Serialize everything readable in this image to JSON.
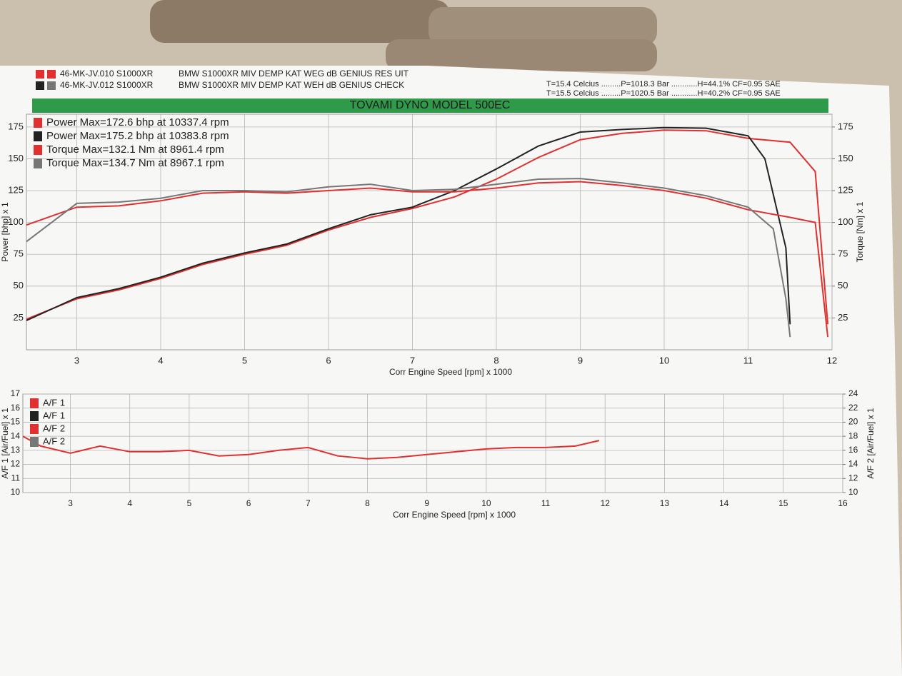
{
  "header": {
    "runs": [
      {
        "id": "46-MK-JV.010 S1000XR",
        "desc": "BMW S1000XR MIV DEMP KAT WEG dB GENIUS RES UIT"
      },
      {
        "id": "46-MK-JV.012 S1000XR",
        "desc": "BMW S1000XR MIV DEMP KAT WEH dB GENIUS CHECK"
      }
    ],
    "conditions": [
      "T=15.4 Celcius .........P=1018.3 Bar ............H=44.1% CF=0.95 SAE",
      "T=15.5 Celcius .........P=1020.5 Bar ............H=40.2% CF=0.95 SAE"
    ]
  },
  "chart_data": [
    {
      "type": "line",
      "title": "TOVAMI DYNO MODEL 500EC",
      "xlabel": "Corr Engine Speed [rpm] x 1000",
      "ylabel": "Power [bhp] x 1",
      "y2label": "Torque [Nm] x 1",
      "xlim": [
        2.4,
        12
      ],
      "xticks": [
        3,
        4,
        5,
        6,
        7,
        8,
        9,
        10,
        11,
        12
      ],
      "ylim": [
        0,
        185
      ],
      "yticks": [
        25,
        50,
        75,
        100,
        125,
        150,
        175
      ],
      "y2lim": [
        0,
        185
      ],
      "y2ticks": [
        25,
        50,
        75,
        100,
        125,
        150,
        175
      ],
      "grid": true,
      "series": [
        {
          "name": "Power Max=172.6 bhp at 10337.4 rpm",
          "color": "#e03030",
          "x": [
            2.4,
            3,
            3.5,
            4,
            4.5,
            5,
            5.5,
            6,
            6.5,
            7,
            7.5,
            8,
            8.5,
            9,
            9.5,
            10,
            10.5,
            11,
            11.5,
            11.8,
            11.95
          ],
          "values": [
            24,
            40,
            47,
            56,
            67,
            75,
            82,
            94,
            104,
            111,
            120,
            134,
            151,
            165,
            170,
            172.5,
            172,
            166,
            163,
            140,
            20
          ]
        },
        {
          "name": "Power Max=175.2 bhp at 10383.8 rpm",
          "color": "#222222",
          "x": [
            2.4,
            3,
            3.5,
            4,
            4.5,
            5,
            5.5,
            6,
            6.5,
            7,
            7.5,
            8,
            8.5,
            9,
            9.5,
            10,
            10.5,
            11,
            11.2,
            11.45,
            11.5
          ],
          "values": [
            23,
            41,
            48,
            57,
            68,
            76,
            83,
            95,
            106,
            112,
            125,
            142,
            160,
            171,
            173,
            174.5,
            174,
            168,
            150,
            80,
            20
          ]
        },
        {
          "name": "Torque Max=132.1 Nm at 8961.4 rpm",
          "color": "#e03030",
          "axis": "y2",
          "x": [
            2.4,
            3,
            3.5,
            4,
            4.5,
            5,
            5.5,
            6,
            6.5,
            7,
            7.5,
            8,
            8.5,
            9,
            9.5,
            10,
            10.5,
            11,
            11.5,
            11.8,
            11.95
          ],
          "values": [
            98,
            112,
            113,
            117,
            123,
            124,
            123,
            125,
            127,
            124,
            124,
            127,
            131,
            132,
            129,
            125,
            119,
            110,
            104,
            100,
            10
          ]
        },
        {
          "name": "Torque Max=134.7 Nm at 8967.1 rpm",
          "color": "#777777",
          "axis": "y2",
          "x": [
            2.4,
            3,
            3.5,
            4,
            4.5,
            5,
            5.5,
            6,
            6.5,
            7,
            7.5,
            8,
            8.5,
            9,
            9.5,
            10,
            10.5,
            11,
            11.3,
            11.45,
            11.5
          ],
          "values": [
            85,
            115,
            116,
            119,
            125,
            125,
            124,
            128,
            130,
            125,
            126,
            130,
            134,
            134.5,
            131,
            127,
            121,
            112,
            95,
            40,
            10
          ]
        }
      ]
    },
    {
      "type": "line",
      "xlabel": "Corr Engine Speed [rpm] x 1000",
      "ylabel": "A/F 1 [Air/Fuel] x 1",
      "y2label": "A/F 2 [Air/Fuel] x 1",
      "xlim": [
        2.2,
        16
      ],
      "xticks": [
        3,
        4,
        5,
        6,
        7,
        8,
        9,
        10,
        11,
        12,
        13,
        14,
        15,
        16
      ],
      "ylim": [
        10,
        17
      ],
      "yticks": [
        10,
        11,
        12,
        13,
        14,
        15,
        16,
        17
      ],
      "y2lim": [
        10,
        24
      ],
      "y2ticks": [
        10,
        12,
        14,
        16,
        18,
        20,
        22,
        24
      ],
      "grid": true,
      "legend": [
        {
          "name": "A/F 1",
          "color": "#e03030"
        },
        {
          "name": "A/F 1",
          "color": "#222222"
        },
        {
          "name": "A/F 2",
          "color": "#e03030"
        },
        {
          "name": "A/F 2",
          "color": "#777777"
        }
      ],
      "series": [
        {
          "color": "#e03030",
          "x": [
            2.2,
            2.5,
            3,
            3.5,
            4,
            4.5,
            5,
            5.5,
            6,
            6.5,
            7,
            7.5,
            8,
            8.5,
            9,
            9.5,
            10,
            10.5,
            11,
            11.5,
            11.9
          ],
          "values": [
            14,
            13.3,
            12.8,
            13.3,
            12.9,
            12.9,
            13.0,
            12.6,
            12.7,
            13.0,
            13.2,
            12.6,
            12.4,
            12.5,
            12.7,
            12.9,
            13.1,
            13.2,
            13.2,
            13.3,
            13.7
          ]
        }
      ]
    }
  ]
}
